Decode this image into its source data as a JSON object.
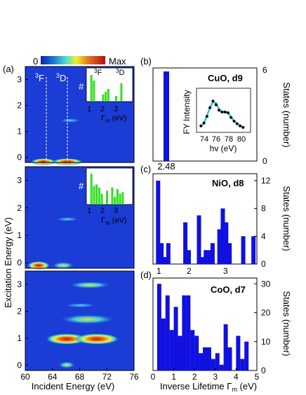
{
  "colorbar": {
    "min_label": "0",
    "max_label": "Max"
  },
  "panels": {
    "a": {
      "label": "(a)"
    },
    "b": {
      "label": "(b)",
      "sample": "CuO, d9",
      "bar_value_label": "2.48"
    },
    "c": {
      "label": "(c)",
      "sample": "NiO, d8"
    },
    "d": {
      "label": "(d)",
      "sample": "CoO, d7"
    }
  },
  "left_axes": {
    "ylabel": "Excitation Energy (eV)",
    "xlabel": "Incident Energy (eV)",
    "x_ticks": [
      "60",
      "64",
      "68",
      "72",
      "76"
    ],
    "y_ticks": [
      "0",
      "1",
      "2",
      "3"
    ],
    "xlim": [
      60,
      76
    ],
    "top_annotations": {
      "f_term": "3F",
      "d_term": "3D"
    }
  },
  "right_axes": {
    "xlabel": "Inverse Lifetime Γm (eV)",
    "ylabel": "States (number)",
    "x_ticks": [
      "0",
      "1",
      "2",
      "3",
      "4",
      "5"
    ],
    "c_x_ticks": [
      "1",
      "2",
      "3"
    ]
  },
  "chart_data": [
    {
      "type": "heatmap",
      "panel": "a-top (CuO RIXS map)",
      "xlabel": "Incident Energy (eV)",
      "ylabel": "Excitation Energy (eV)",
      "xlim": [
        60,
        76
      ],
      "ylim": [
        -0.2,
        3.5
      ],
      "features": [
        {
          "x": 62,
          "y": 0.02,
          "intensity": 0.8
        },
        {
          "x": 66,
          "y": 0.02,
          "intensity": 0.75
        },
        {
          "x": 66,
          "y": 1.55,
          "intensity": 0.25
        }
      ],
      "dashed_lines_x": [
        63.2,
        66
      ]
    },
    {
      "type": "heatmap",
      "panel": "a-middle (NiO RIXS map)",
      "xlim": [
        60,
        76
      ],
      "ylim": [
        -0.2,
        3.5
      ],
      "features": [
        {
          "x": 61.5,
          "y": 0.0,
          "intensity": 0.85
        },
        {
          "x": 65,
          "y": 0.0,
          "intensity": 0.55
        },
        {
          "x": 66,
          "y": 1.75,
          "intensity": 0.2
        }
      ]
    },
    {
      "type": "heatmap",
      "panel": "a-bottom (CoO RIXS map)",
      "xlim": [
        60,
        76
      ],
      "ylim": [
        -0.2,
        3.5
      ],
      "features": [
        {
          "x": 66,
          "y": 1.0,
          "intensity": 0.9
        },
        {
          "x": 70,
          "y": 1.0,
          "intensity": 0.85
        },
        {
          "x": 68,
          "y": 1.7,
          "intensity": 0.45
        },
        {
          "x": 68,
          "y": 3.0,
          "intensity": 0.35
        },
        {
          "x": 66,
          "y": 0.0,
          "intensity": 0.45
        }
      ]
    },
    {
      "type": "bar",
      "panel": "inset a-top",
      "xlabel": "Γm (eV)",
      "ylabel": "#",
      "x": [
        1.0,
        1.2,
        1.9,
        2.1,
        2.3,
        2.9,
        3.3
      ],
      "values": [
        0.95,
        0.75,
        0.25,
        0.35,
        0.45,
        0.2,
        0.65
      ],
      "annotations": [
        "3F",
        "3D"
      ]
    },
    {
      "type": "bar",
      "panel": "inset a-middle",
      "xlabel": "Γm (eV)",
      "ylabel": "#",
      "x": [
        1.0,
        1.2,
        1.4,
        1.6,
        1.8,
        2.2,
        2.6,
        2.8,
        3.0,
        3.2,
        3.4
      ],
      "values": [
        1.0,
        0.6,
        0.65,
        0.55,
        0.35,
        0.45,
        0.55,
        0.25,
        0.5,
        0.35,
        0.4
      ]
    },
    {
      "type": "bar",
      "panel": "(b) CuO, d9",
      "x": [
        2.48
      ],
      "values": [
        6
      ],
      "ylim": [
        0,
        6.3
      ],
      "ylabel": "States (number)",
      "y_ticks": [
        "0",
        "6"
      ]
    },
    {
      "type": "scatter",
      "panel": "inset (b)",
      "xlabel": "hv (eV)",
      "ylabel": "FY Intensity",
      "xlim": [
        72.5,
        81
      ],
      "x_ticks": [
        "74",
        "76",
        "78",
        "80"
      ],
      "x": [
        73.0,
        73.5,
        74.0,
        74.5,
        75.0,
        75.5,
        76.0,
        76.5,
        77.0,
        77.5,
        78.0,
        78.5,
        79.0,
        79.5,
        80.0
      ],
      "y": [
        0.12,
        0.2,
        0.38,
        0.62,
        0.8,
        0.7,
        0.55,
        0.5,
        0.5,
        0.48,
        0.35,
        0.25,
        0.18,
        0.12,
        0.08
      ],
      "fit": [
        0.1,
        0.2,
        0.4,
        0.62,
        0.78,
        0.74,
        0.58,
        0.5,
        0.52,
        0.47,
        0.36,
        0.26,
        0.18,
        0.12,
        0.08
      ]
    },
    {
      "type": "bar",
      "panel": "(c) NiO, d8",
      "xlim": [
        0.9,
        3.95
      ],
      "ylim": [
        0,
        13
      ],
      "y_ticks": [
        "0",
        "4",
        "8",
        "12"
      ],
      "x": [
        1.05,
        1.15,
        1.25,
        1.35,
        1.85,
        1.95,
        2.25,
        2.35,
        2.45,
        2.55,
        2.65,
        2.85,
        2.95,
        3.05,
        3.15,
        3.55,
        3.85
      ],
      "values": [
        12,
        3,
        1,
        3,
        6,
        2,
        7,
        1,
        2,
        2,
        3,
        5,
        8,
        6,
        3,
        4,
        4
      ]
    },
    {
      "type": "bar",
      "panel": "(d) CoO, d7",
      "xlim": [
        0,
        5
      ],
      "ylim": [
        0,
        32
      ],
      "y_ticks": [
        "0",
        "10",
        "20",
        "30"
      ],
      "x": [
        0.3,
        0.5,
        0.7,
        0.9,
        1.1,
        1.3,
        1.5,
        1.7,
        1.9,
        2.1,
        2.3,
        2.5,
        2.7,
        2.9,
        3.1,
        3.3,
        3.5,
        3.7,
        4.1,
        4.3,
        4.5
      ],
      "values": [
        30,
        18,
        26,
        14,
        22,
        12,
        26,
        26,
        14,
        12,
        6,
        8,
        8,
        4,
        6,
        2,
        16,
        8,
        12,
        4,
        10
      ]
    }
  ]
}
